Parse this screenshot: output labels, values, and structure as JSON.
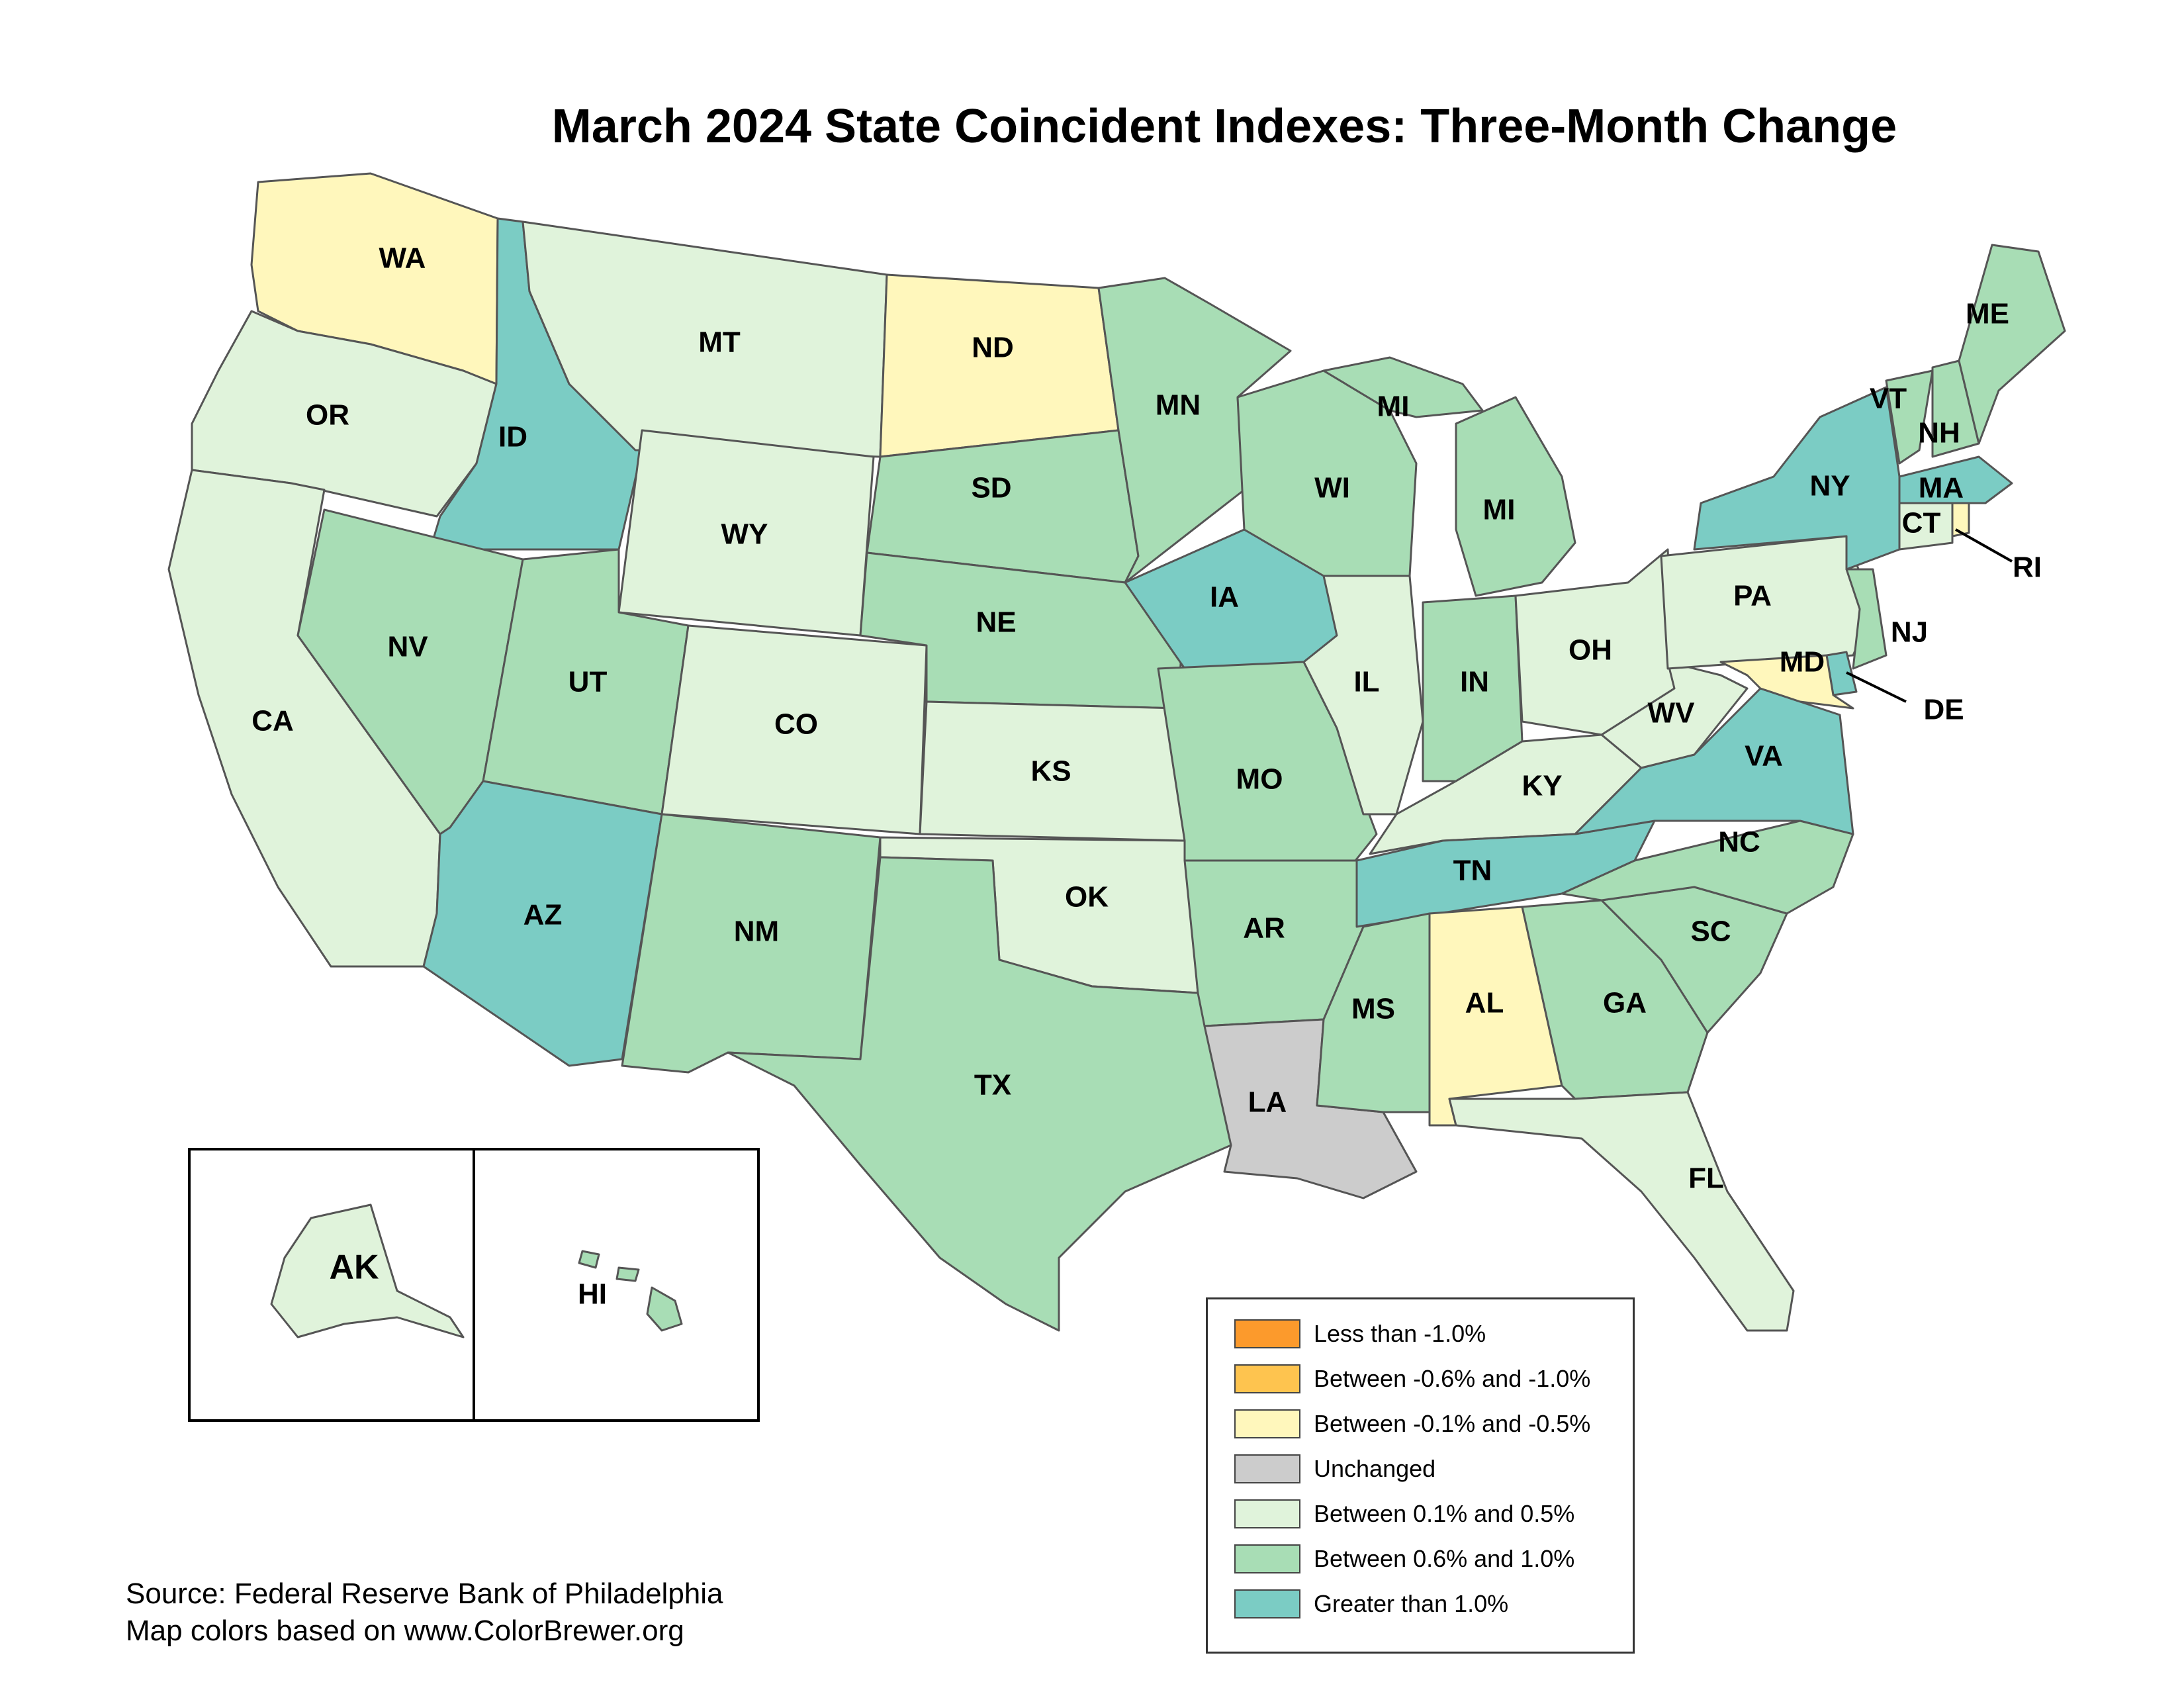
{
  "title": "March 2024 State Coincident Indexes: Three-Month Change",
  "legend": {
    "items": [
      {
        "label": "Less than -1.0%",
        "color": "#fc9a2c"
      },
      {
        "label": "Between -0.6% and -1.0%",
        "color": "#fec44f"
      },
      {
        "label": "Between -0.1% and -0.5%",
        "color": "#fff7bc"
      },
      {
        "label": "Unchanged",
        "color": "#cccccc"
      },
      {
        "label": "Between 0.1% and 0.5%",
        "color": "#e0f3db"
      },
      {
        "label": "Between 0.6% and 1.0%",
        "color": "#a8ddb5"
      },
      {
        "label": "Greater than 1.0%",
        "color": "#7bccc4"
      }
    ]
  },
  "states": [
    {
      "abbr": "WA",
      "category": 2
    },
    {
      "abbr": "OR",
      "category": 4
    },
    {
      "abbr": "CA",
      "category": 4
    },
    {
      "abbr": "ID",
      "category": 6
    },
    {
      "abbr": "NV",
      "category": 5
    },
    {
      "abbr": "MT",
      "category": 4
    },
    {
      "abbr": "WY",
      "category": 4
    },
    {
      "abbr": "UT",
      "category": 5
    },
    {
      "abbr": "AZ",
      "category": 6
    },
    {
      "abbr": "CO",
      "category": 4
    },
    {
      "abbr": "NM",
      "category": 5
    },
    {
      "abbr": "ND",
      "category": 2
    },
    {
      "abbr": "SD",
      "category": 5
    },
    {
      "abbr": "NE",
      "category": 5
    },
    {
      "abbr": "KS",
      "category": 4
    },
    {
      "abbr": "OK",
      "category": 4
    },
    {
      "abbr": "TX",
      "category": 5
    },
    {
      "abbr": "MN",
      "category": 5
    },
    {
      "abbr": "IA",
      "category": 6
    },
    {
      "abbr": "MO",
      "category": 5
    },
    {
      "abbr": "AR",
      "category": 5
    },
    {
      "abbr": "LA",
      "category": 3
    },
    {
      "abbr": "WI",
      "category": 5
    },
    {
      "abbr": "IL",
      "category": 4
    },
    {
      "abbr": "MI",
      "category": 5
    },
    {
      "abbr": "IN",
      "category": 5
    },
    {
      "abbr": "OH",
      "category": 4
    },
    {
      "abbr": "KY",
      "category": 4
    },
    {
      "abbr": "TN",
      "category": 6
    },
    {
      "abbr": "MS",
      "category": 5
    },
    {
      "abbr": "AL",
      "category": 2
    },
    {
      "abbr": "GA",
      "category": 5
    },
    {
      "abbr": "FL",
      "category": 4
    },
    {
      "abbr": "SC",
      "category": 5
    },
    {
      "abbr": "NC",
      "category": 5
    },
    {
      "abbr": "VA",
      "category": 6
    },
    {
      "abbr": "WV",
      "category": 4
    },
    {
      "abbr": "PA",
      "category": 4
    },
    {
      "abbr": "NY",
      "category": 6
    },
    {
      "abbr": "VT",
      "category": 5
    },
    {
      "abbr": "NH",
      "category": 5
    },
    {
      "abbr": "ME",
      "category": 5
    },
    {
      "abbr": "MA",
      "category": 6
    },
    {
      "abbr": "CT",
      "category": 4
    },
    {
      "abbr": "RI",
      "category": 2
    },
    {
      "abbr": "NJ",
      "category": 5
    },
    {
      "abbr": "DE",
      "category": 6
    },
    {
      "abbr": "MD",
      "category": 2
    },
    {
      "abbr": "AK",
      "category": 4
    },
    {
      "abbr": "HI",
      "category": 5
    }
  ],
  "source_lines": [
    "Source: Federal Reserve Bank of Philadelphia",
    "Map colors based on www.ColorBrewer.org"
  ]
}
